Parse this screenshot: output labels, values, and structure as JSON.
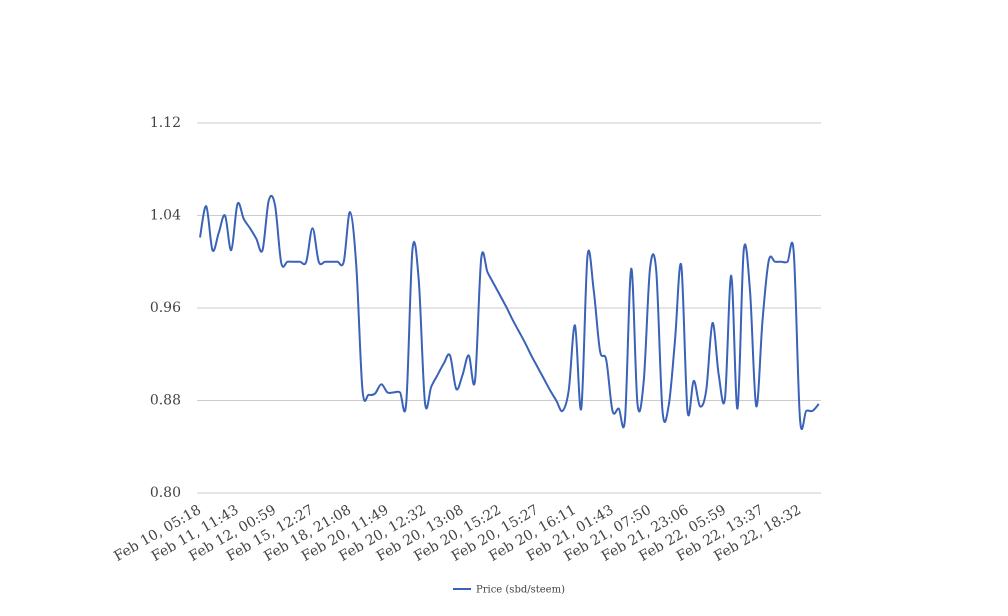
{
  "chart_data": {
    "type": "line",
    "categories": [
      "Feb 10, 05:18",
      null,
      null,
      null,
      null,
      null,
      "Feb 11, 11:43",
      null,
      null,
      null,
      null,
      null,
      "Feb 12, 00:59",
      null,
      null,
      null,
      null,
      null,
      "Feb 15, 12:27",
      null,
      null,
      null,
      null,
      null,
      "Feb 18, 21:08",
      null,
      null,
      null,
      null,
      null,
      "Feb 20, 11:49",
      null,
      null,
      null,
      null,
      null,
      "Feb 20, 12:32",
      null,
      null,
      null,
      null,
      null,
      "Feb 20, 13:08",
      null,
      null,
      null,
      null,
      null,
      "Feb 20, 15:22",
      null,
      null,
      null,
      null,
      null,
      "Feb 20, 15:27",
      null,
      null,
      null,
      null,
      null,
      "Feb 20, 16:11",
      null,
      null,
      null,
      null,
      null,
      "Feb 21, 01:43",
      null,
      null,
      null,
      null,
      null,
      "Feb 21, 07:50",
      null,
      null,
      null,
      null,
      null,
      "Feb 21, 23:06",
      null,
      null,
      null,
      null,
      null,
      "Feb 22, 05:59",
      null,
      null,
      null,
      null,
      null,
      "Feb 22, 13:37",
      null,
      null,
      null,
      null,
      null,
      "Feb 22, 18:32",
      null,
      null,
      null
    ],
    "series": [
      {
        "name": "Price (sbd/steem)",
        "color": "#3a62b8",
        "values": [
          1.021,
          1.048,
          1.01,
          1.025,
          1.04,
          1.01,
          1.05,
          1.037,
          1.029,
          1.02,
          1.01,
          1.053,
          1.049,
          0.999,
          1.0,
          1.0,
          1.0,
          1.0,
          1.029,
          1.0,
          1.0,
          1.0,
          1.0,
          1.0,
          1.043,
          0.997,
          0.889,
          0.885,
          0.886,
          0.894,
          0.887,
          0.887,
          0.887,
          0.878,
          1.011,
          0.984,
          0.878,
          0.892,
          0.902,
          0.912,
          0.919,
          0.89,
          0.902,
          0.919,
          0.897,
          1.003,
          0.991,
          0.981,
          0.971,
          0.961,
          0.95,
          0.94,
          0.93,
          0.919,
          0.909,
          0.899,
          0.889,
          0.88,
          0.871,
          0.889,
          0.945,
          0.873,
          1.005,
          0.975,
          0.923,
          0.915,
          0.871,
          0.873,
          0.864,
          0.994,
          0.877,
          0.897,
          0.994,
          0.992,
          0.871,
          0.876,
          0.932,
          0.997,
          0.871,
          0.897,
          0.875,
          0.889,
          0.947,
          0.902,
          0.882,
          0.988,
          0.873,
          1.01,
          0.975,
          0.875,
          0.949,
          1.001,
          1.0,
          1.0,
          1.0,
          1.008,
          0.864,
          0.871,
          0.871,
          0.877
        ]
      }
    ],
    "ylim": [
      0.8,
      1.12
    ],
    "yticks": [
      {
        "value": 0.8,
        "label": "0.80"
      },
      0.88,
      0.96,
      1.04,
      1.12
    ],
    "grid": true,
    "legend": "bottom"
  }
}
